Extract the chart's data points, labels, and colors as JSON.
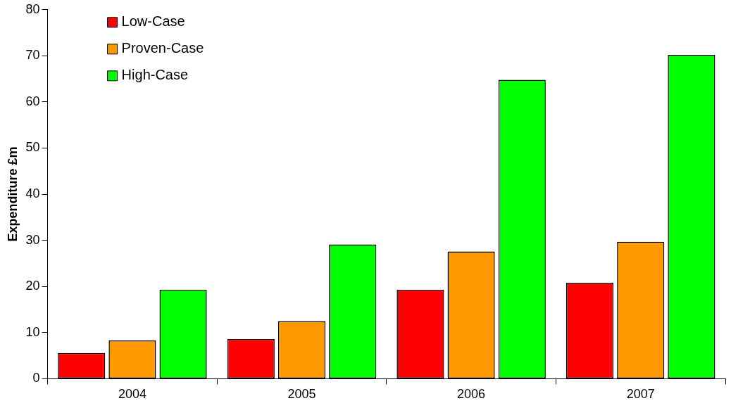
{
  "chart_data": {
    "type": "bar",
    "ylabel": "Expenditure £m",
    "categories": [
      "2004",
      "2005",
      "2006",
      "2007"
    ],
    "series": [
      {
        "name": "Low-Case",
        "color": "#ff0000",
        "values": [
          5.6,
          8.6,
          19.3,
          20.8
        ]
      },
      {
        "name": "Proven-Case",
        "color": "#ff9900",
        "values": [
          8.3,
          12.5,
          27.6,
          29.7
        ]
      },
      {
        "name": "High-Case",
        "color": "#00ff00",
        "values": [
          19.3,
          29.1,
          64.8,
          70.2
        ]
      }
    ],
    "ylim": [
      0,
      80
    ],
    "yticks": [
      0,
      10,
      20,
      30,
      40,
      50,
      60,
      70,
      80
    ],
    "grid": false,
    "legend": "top left"
  }
}
